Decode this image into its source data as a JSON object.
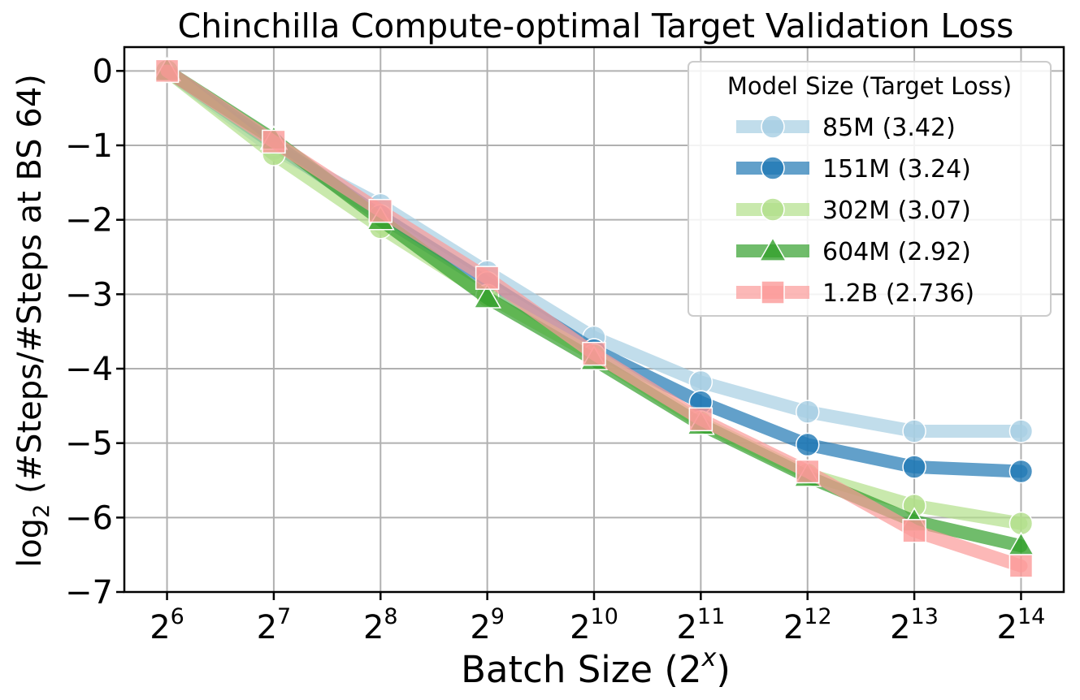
{
  "chart_data": {
    "type": "line",
    "title": "Chinchilla Compute-optimal Target Validation Loss",
    "xlabel": "Batch Size (2^x)",
    "xlabel_prefix": "Batch Size (2",
    "xlabel_sup": "x",
    "xlabel_suffix": ")",
    "ylabel": "log2 (#Steps/#Steps at BS 64)",
    "ylabel_prefix": "log",
    "ylabel_sub": "2",
    "ylabel_suffix": " (#Steps/#Steps at BS 64)",
    "x": [
      6,
      7,
      8,
      9,
      10,
      11,
      12,
      13,
      14
    ],
    "x_tick_base": "2",
    "xlim": [
      5.6,
      14.4
    ],
    "ylim": [
      -7,
      0.32
    ],
    "yticks": [
      0,
      -1,
      -2,
      -3,
      -4,
      -5,
      -6,
      -7
    ],
    "ytick_labels": [
      "0",
      "−1",
      "−2",
      "−3",
      "−4",
      "−5",
      "−6",
      "−7"
    ],
    "grid": true,
    "legend_title": "Model Size (Target Loss)",
    "legend_position": "top-right",
    "series": [
      {
        "name": "85M (3.42)",
        "color": "#a6cee3",
        "marker": "circle",
        "values": [
          0,
          -1.05,
          -1.8,
          -2.7,
          -3.58,
          -4.18,
          -4.58,
          -4.84,
          -4.84
        ]
      },
      {
        "name": "151M (3.24)",
        "color": "#1f78b4",
        "marker": "circle",
        "values": [
          0,
          -0.98,
          -1.95,
          -2.85,
          -3.75,
          -4.45,
          -5.02,
          -5.32,
          -5.38
        ]
      },
      {
        "name": "302M (3.07)",
        "color": "#b2df8a",
        "marker": "circle",
        "values": [
          0,
          -1.12,
          -2.1,
          -3.02,
          -3.82,
          -4.72,
          -5.42,
          -5.84,
          -6.08
        ]
      },
      {
        "name": "604M (2.92)",
        "color": "#33a02c",
        "marker": "triangle",
        "values": [
          0,
          -0.92,
          -2.0,
          -3.05,
          -3.88,
          -4.75,
          -5.45,
          -6.05,
          -6.38
        ]
      },
      {
        "name": "1.2B (2.736)",
        "color": "#fb9a99",
        "marker": "square",
        "values": [
          0,
          -0.95,
          -1.88,
          -2.78,
          -3.8,
          -4.68,
          -5.38,
          -6.18,
          -6.65
        ]
      }
    ]
  }
}
